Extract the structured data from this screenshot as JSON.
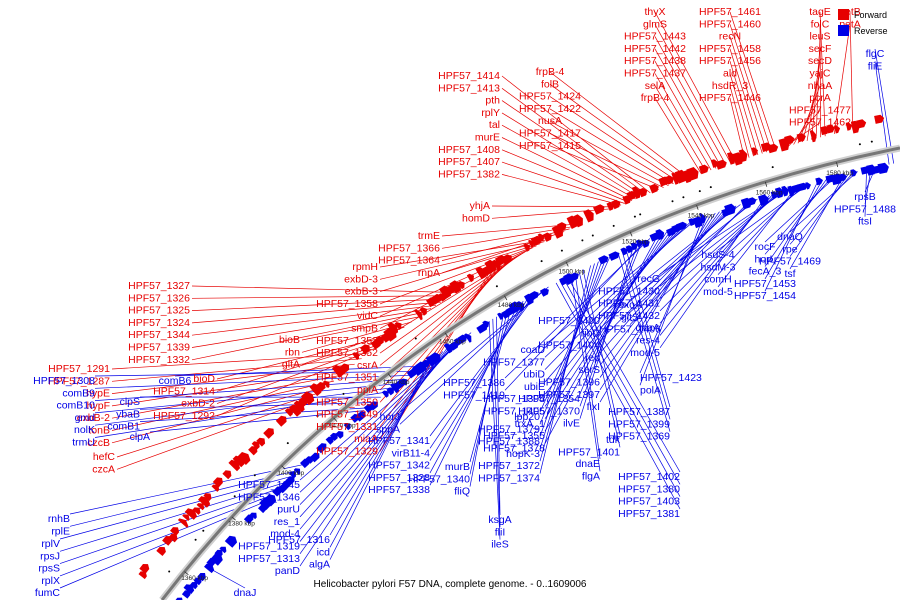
{
  "caption": "Helicobacter pylori F57 DNA, complete genome. - 0..1609006",
  "colors": {
    "forward": "#e60000",
    "reverse": "#0000e6",
    "backbone": "#777777"
  },
  "legend": [
    {
      "label": "Forward",
      "color": "#e60000"
    },
    {
      "label": "Reverse",
      "color": "#0000e6"
    }
  ],
  "ticks": [
    "1360 kbp",
    "1380 kbp",
    "1400 kbp",
    "1420 kbp",
    "1440 kbp",
    "1460 kbp",
    "1480 kbp",
    "1500 kbp",
    "1520 kbp",
    "1540 kbp",
    "1560 kbp",
    "1580 kbp"
  ],
  "forward_labels": [
    "petB",
    "petA",
    "tagE",
    "folC",
    "leuS",
    "secF",
    "secD",
    "yajC",
    "nhaA",
    "pcrA",
    "HPF57_1477",
    "HPF57_1462",
    "HPF57_1461",
    "HPF57_1460",
    "recN",
    "HPF57_1458",
    "HPF57_1456",
    "ald",
    "hsdR_3",
    "HPF57_1446",
    "thyX",
    "glmS",
    "HPF57_1443",
    "HPF57_1442",
    "HPF57_1438",
    "HPF57_1437",
    "selA",
    "frpB-4",
    "frpB-4",
    "folB",
    "HPF57_1424",
    "HPF57_1422",
    "nusA",
    "HPF57_1417",
    "HPF57_1415",
    "HPF57_1414",
    "HPF57_1413",
    "pth",
    "rplY",
    "tal",
    "murE",
    "HPF57_1408",
    "HPF57_1407",
    "HPF57_1382",
    "yhjA",
    "homD",
    "trmE",
    "HPF57_1366",
    "HPF57_1364",
    "rnpA",
    "rpmH",
    "exbD-3",
    "exbB-3",
    "HPF57_1358",
    "vidC",
    "smpB",
    "HPF57_1353",
    "HPF57_1352",
    "csrA",
    "HPF57_1351",
    "ppiA",
    "HPF57_1350",
    "HPF57_1349",
    "HPF57_1331",
    "miaA",
    "HPF57_1329",
    "HPF57_1327",
    "HPF57_1326",
    "HPF57_1325",
    "HPF57_1324",
    "HPF57_1344",
    "HPF57_1339",
    "HPF57_1332",
    "bioB",
    "rbn",
    "gltA",
    "bioD",
    "HPF57_1314",
    "exbD-2",
    "HPF57_1292",
    "HPF57_1291",
    "HPF57_1287",
    "hypE",
    "hypF",
    "exbB-2",
    "tonB",
    "czcB",
    "hefC",
    "czcA"
  ],
  "reverse_labels": [
    "flgC",
    "fliE",
    "rpsB",
    "HPF57_1488",
    "ftsI",
    "dnaQ",
    "rpe",
    "HPF57_1469",
    "tsf",
    "rocF",
    "horL",
    "fecA_3",
    "HPF57_1453",
    "HPF57_1454",
    "hsdS-4",
    "hsdM-3",
    "comH",
    "mod-5",
    "recG",
    "HPF57_1430",
    "HPF57_1431",
    "HPF57_1432",
    "dnaA",
    "res-4",
    "mod-5",
    "exoA",
    "gltS",
    "HPF57_1406",
    "HPF57_1400",
    "ribD",
    "HPF57_1404",
    "rep",
    "serS",
    "HPF57_1396",
    "HPF57_1397",
    "fixI",
    "HPF57_1423",
    "polA",
    "coaD",
    "HPF57_1377",
    "ubiD",
    "ubiE",
    "HPF57_1394",
    "HPF57_1405",
    "trxA_1",
    "HPF57_1355",
    "HPF57_1378",
    "HPF57_1386",
    "HPF57_1419",
    "HPF57_1354",
    "HPF57_1370",
    "ilvE",
    "HPF57_1387",
    "HPF57_1399",
    "HPF57_1369",
    "lpp20",
    "HPF57_1379",
    "HPF57_1388",
    "hopK-3",
    "HPF57_1372",
    "HPF57_1374",
    "tdk",
    "HPF57_1401",
    "dnaE",
    "flgA",
    "HPF57_1402",
    "HPF57_1380",
    "HPF57_1403",
    "HPF57_1381",
    "horJ",
    "sppA",
    "HPF57_1341",
    "virB11-4",
    "HPF57_1342",
    "HPF57_1328",
    "HPF57_1338",
    "murB",
    "HPF57_1340",
    "fliQ",
    "ksgA",
    "fliI",
    "ileS",
    "HPF57_1345",
    "HPF57_1346",
    "purU",
    "res_1",
    "mod-4",
    "HPF57_1319",
    "HPF57_1313",
    "panD",
    "HPF57_1316",
    "icd",
    "algA",
    "comB6",
    "HPF57_1308",
    "comB9",
    "comB10",
    "gmd",
    "nolK",
    "trmU",
    "clpS",
    "ybaB",
    "comB1",
    "clpA",
    "rnhB",
    "rplE",
    "rplV",
    "rpsJ",
    "rpsS",
    "rplX",
    "fumC",
    "dnaJ"
  ]
}
